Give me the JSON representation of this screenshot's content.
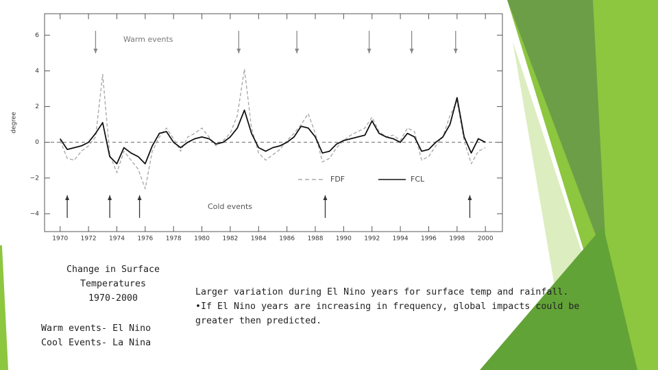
{
  "chart_data": {
    "type": "line",
    "ylabel": "degree",
    "warm_label": "Warm events",
    "cold_label": "Cold events",
    "warm_events": [
      1972.5,
      1982.6,
      1986.7,
      1991.8,
      1994.8,
      1997.9
    ],
    "cold_events": [
      1970.5,
      1973.5,
      1975.6,
      1988.7,
      1998.9
    ],
    "x": [
      1970,
      1970.5,
      1971,
      1971.5,
      1972,
      1972.5,
      1973,
      1973.5,
      1974,
      1974.5,
      1975,
      1975.5,
      1976,
      1976.5,
      1977,
      1977.5,
      1978,
      1978.5,
      1979,
      1979.5,
      1980,
      1980.5,
      1981,
      1981.5,
      1982,
      1982.5,
      1983,
      1983.5,
      1984,
      1984.5,
      1985,
      1985.5,
      1986,
      1986.5,
      1987,
      1987.5,
      1988,
      1988.5,
      1989,
      1989.5,
      1990,
      1990.5,
      1991,
      1991.5,
      1992,
      1992.5,
      1993,
      1993.5,
      1994,
      1994.5,
      1995,
      1995.5,
      1996,
      1996.5,
      1997,
      1997.5,
      1998,
      1998.5,
      1999,
      1999.5,
      2000
    ],
    "series": [
      {
        "name": "FDF",
        "color": "#aaaaaa",
        "dashed": true,
        "values": [
          0.1,
          -0.9,
          -1.0,
          -0.5,
          -0.2,
          0.3,
          3.8,
          -0.7,
          -1.7,
          -0.5,
          -1.0,
          -1.5,
          -2.6,
          -0.5,
          0.3,
          0.8,
          0.2,
          -0.5,
          0.3,
          0.5,
          0.8,
          0.3,
          -0.2,
          0.1,
          0.5,
          1.5,
          4.1,
          0.8,
          -0.6,
          -1.0,
          -0.7,
          -0.4,
          0.1,
          0.5,
          1.0,
          1.6,
          0.5,
          -1.1,
          -0.9,
          -0.3,
          0.1,
          0.4,
          0.6,
          0.8,
          1.4,
          0.6,
          0.3,
          0.4,
          0.1,
          0.8,
          0.6,
          -1.0,
          -0.8,
          -0.2,
          0.3,
          1.5,
          2.3,
          0.1,
          -1.2,
          -0.5,
          -0.3
        ]
      },
      {
        "name": "FCL",
        "color": "#111111",
        "dashed": false,
        "values": [
          0.2,
          -0.4,
          -0.3,
          -0.2,
          0,
          0.5,
          1.1,
          -0.8,
          -1.2,
          -0.3,
          -0.6,
          -0.8,
          -1.2,
          -0.2,
          0.5,
          0.6,
          0,
          -0.3,
          0,
          0.2,
          0.3,
          0.2,
          -0.1,
          0,
          0.3,
          0.8,
          1.8,
          0.5,
          -0.3,
          -0.5,
          -0.3,
          -0.2,
          0,
          0.3,
          0.9,
          0.8,
          0.3,
          -0.6,
          -0.5,
          -0.1,
          0.1,
          0.2,
          0.3,
          0.4,
          1.2,
          0.5,
          0.3,
          0.2,
          0,
          0.5,
          0.3,
          -0.5,
          -0.4,
          0,
          0.3,
          1.0,
          2.5,
          0.3,
          -0.6,
          0.2,
          0
        ]
      }
    ],
    "xlim": [
      1968.9,
      2001.2
    ],
    "ylim": [
      -5,
      7.2
    ],
    "xticks": [
      1970,
      1972,
      1974,
      1976,
      1978,
      1980,
      1982,
      1984,
      1986,
      1988,
      1990,
      1992,
      1994,
      1996,
      1998,
      2000
    ],
    "yticks": [
      {
        "value": -4,
        "label": "−4"
      },
      {
        "value": -2,
        "label": "−2"
      },
      0,
      2,
      4,
      6
    ],
    "legend": "lower right"
  },
  "slide": {
    "caption_lines": [
      "Change in Surface",
      "Temperatures",
      "1970-2000"
    ],
    "legend_lines": [
      "Warm events- El Nino",
      "Cool Events- La Nina"
    ],
    "body": [
      "Larger variation during El Nino years for surface temp and rainfall.",
      "•If El Nino years are increasing in frequency, global impacts could be greater then predicted."
    ]
  }
}
